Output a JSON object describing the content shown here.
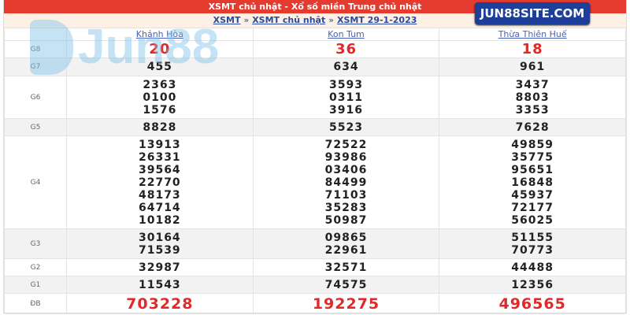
{
  "title": "XSMT chủ nhật - Xổ số miền Trung chủ nhật",
  "breadcrumb": [
    "XSMT",
    "XSMT chủ nhật",
    "XSMT 29-1-2023"
  ],
  "breadcrumb_sep": "»",
  "badge": "JUN88SITE.COM",
  "watermark": "Jun88",
  "provinces": [
    "Khánh Hòa",
    "Kon Tum",
    "Thừa Thiên Huế"
  ],
  "colors": {
    "header": "#e53b2f",
    "highlight": "#e02a2a",
    "badge": "#1d3f9a"
  },
  "prizes": [
    {
      "label": "G8",
      "values": [
        [
          "20"
        ],
        [
          "36"
        ],
        [
          "18"
        ]
      ]
    },
    {
      "label": "G7",
      "values": [
        [
          "455"
        ],
        [
          "634"
        ],
        [
          "961"
        ]
      ]
    },
    {
      "label": "G6",
      "values": [
        [
          "2363",
          "0100",
          "1576"
        ],
        [
          "3593",
          "0311",
          "3916"
        ],
        [
          "3437",
          "8803",
          "3353"
        ]
      ]
    },
    {
      "label": "G5",
      "values": [
        [
          "8828"
        ],
        [
          "5523"
        ],
        [
          "7628"
        ]
      ]
    },
    {
      "label": "G4",
      "values": [
        [
          "13913",
          "26331",
          "39564",
          "22770",
          "48173",
          "64714",
          "10182"
        ],
        [
          "72522",
          "93986",
          "03406",
          "84499",
          "71103",
          "35283",
          "50987"
        ],
        [
          "49859",
          "35775",
          "95651",
          "16848",
          "45937",
          "72177",
          "56025"
        ]
      ]
    },
    {
      "label": "G3",
      "values": [
        [
          "30164",
          "71539"
        ],
        [
          "09865",
          "22961"
        ],
        [
          "51155",
          "70773"
        ]
      ]
    },
    {
      "label": "G2",
      "values": [
        [
          "32987"
        ],
        [
          "32571"
        ],
        [
          "44488"
        ]
      ]
    },
    {
      "label": "G1",
      "values": [
        [
          "11543"
        ],
        [
          "74575"
        ],
        [
          "12356"
        ]
      ]
    },
    {
      "label": "ĐB",
      "values": [
        [
          "703228"
        ],
        [
          "192275"
        ],
        [
          "496565"
        ]
      ]
    }
  ]
}
